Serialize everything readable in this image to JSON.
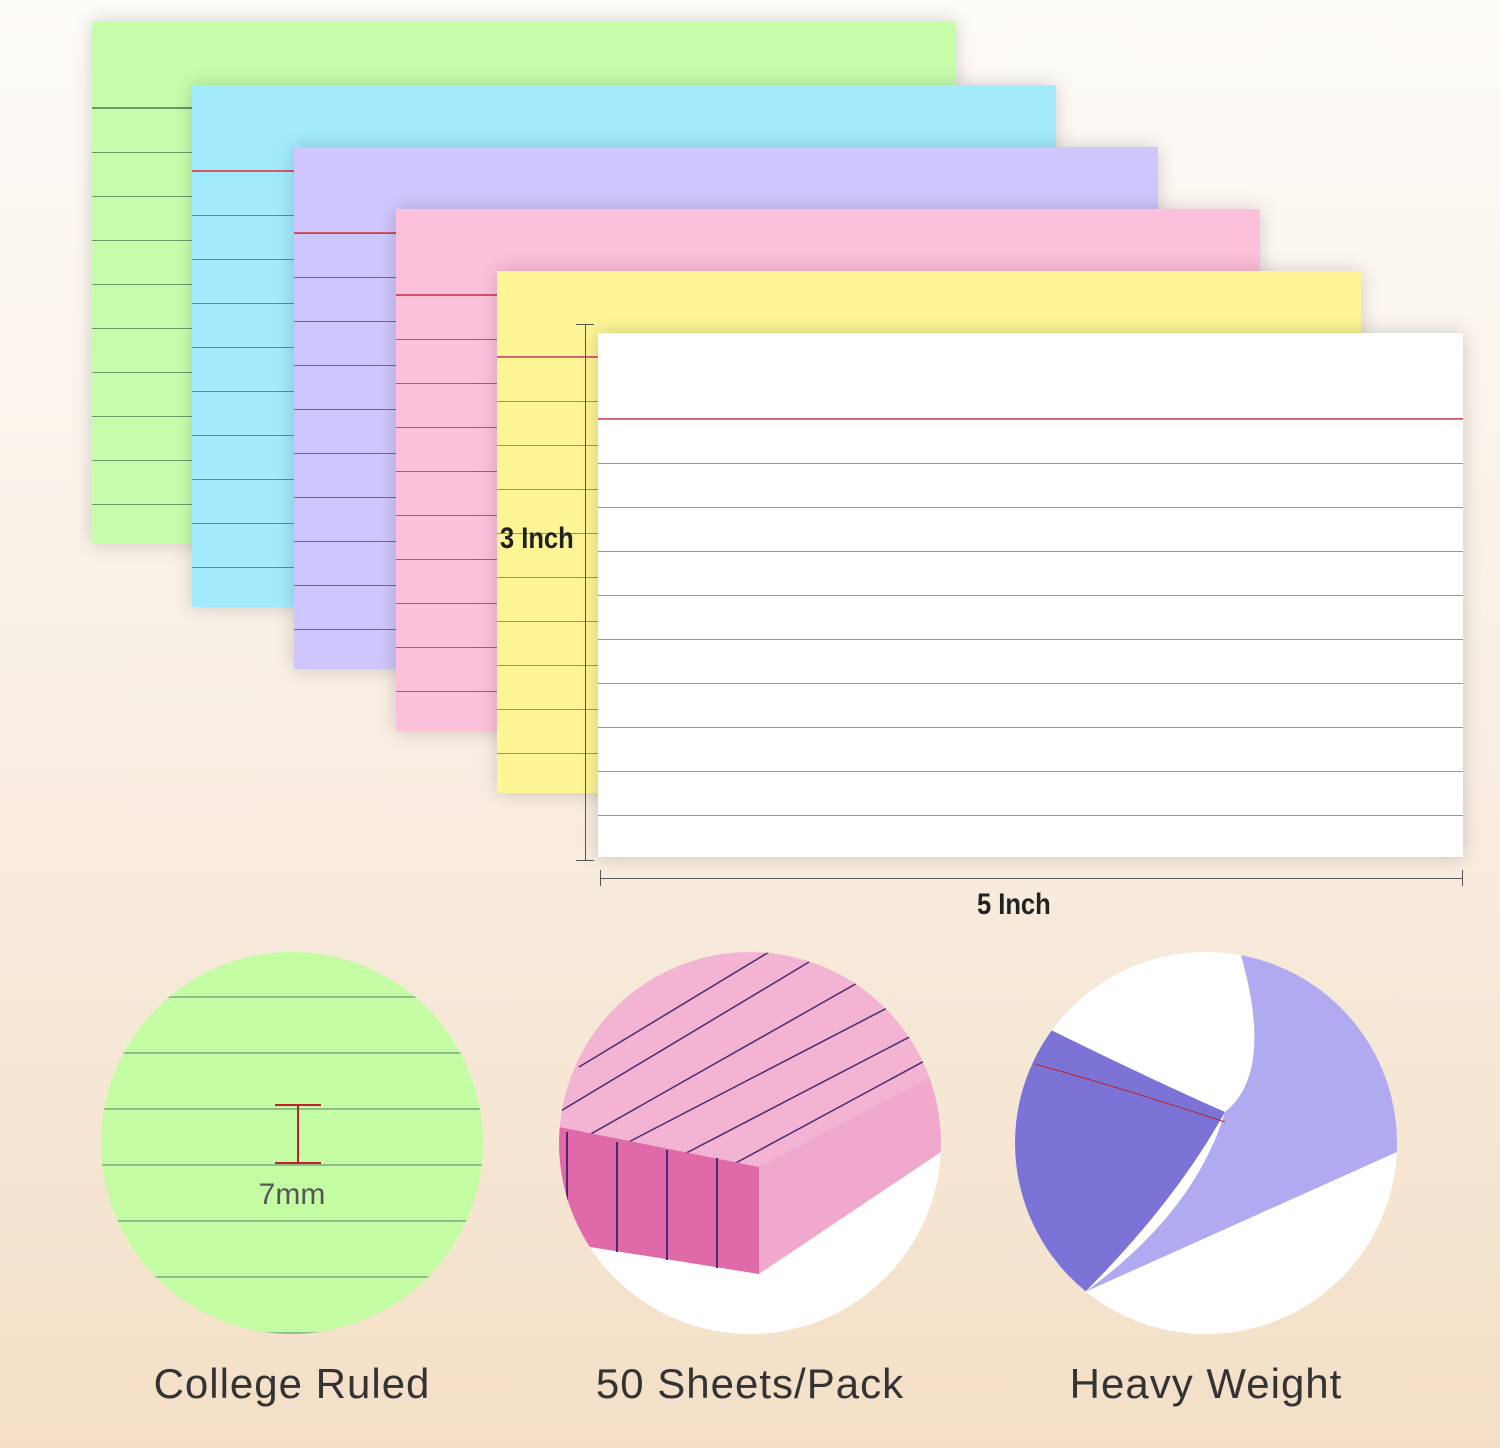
{
  "cards": [
    {
      "color": "green",
      "hex": "#c6fdaa"
    },
    {
      "color": "blue",
      "hex": "#a2ebfd"
    },
    {
      "color": "purple",
      "hex": "#cfc6fd"
    },
    {
      "color": "pink",
      "hex": "#fdc0da"
    },
    {
      "color": "yellow",
      "hex": "#fdf596"
    },
    {
      "color": "white",
      "hex": "#ffffff"
    }
  ],
  "dimensions": {
    "height_label": "3 Inch",
    "width_label": "5 Inch"
  },
  "features": [
    {
      "caption": "College Ruled",
      "annotation": "7mm"
    },
    {
      "caption": "50 Sheets/Pack"
    },
    {
      "caption": "Heavy Weight"
    }
  ]
}
